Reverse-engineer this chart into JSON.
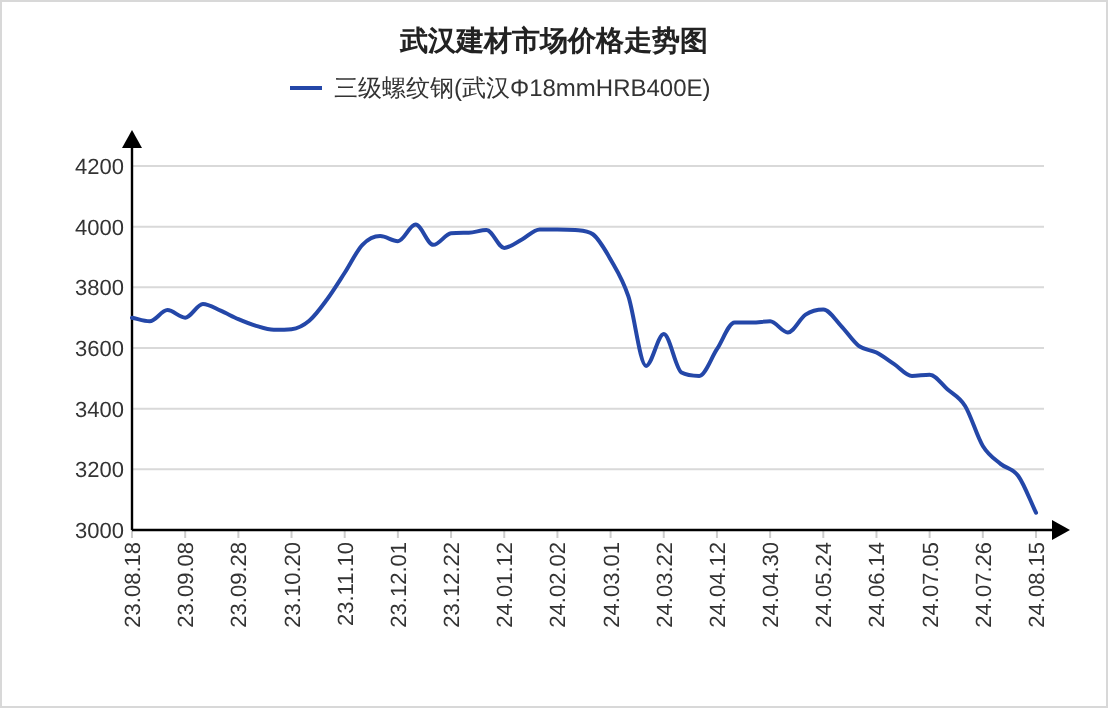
{
  "chart_data": {
    "type": "line",
    "title": "武汉建材市场价格走势图",
    "categories": [
      "23.08.18",
      null,
      null,
      "23.09.08",
      null,
      null,
      "23.09.28",
      null,
      null,
      "23.10.20",
      null,
      null,
      "23.11.10",
      null,
      null,
      "23.12.01",
      null,
      null,
      "23.12.22",
      null,
      null,
      "24.01.12",
      null,
      null,
      "24.02.02",
      null,
      null,
      "24.03.01",
      null,
      null,
      "24.03.22",
      null,
      null,
      "24.04.12",
      null,
      null,
      "24.04.30",
      null,
      null,
      "24.05.24",
      null,
      null,
      "24.06.14",
      null,
      null,
      "24.07.05",
      null,
      null,
      "24.07.26",
      null,
      null,
      "24.08.15"
    ],
    "series": [
      {
        "name": "三级螺纹钢(武汉Φ18mmHRB400E)",
        "color": "#2447a8",
        "values": [
          3700,
          3688,
          3725,
          3700,
          3745,
          3723,
          3695,
          3673,
          3660,
          3662,
          3690,
          3760,
          3848,
          3940,
          3969,
          3952,
          4007,
          3940,
          3978,
          3980,
          3989,
          3930,
          3958,
          3991,
          3991,
          3989,
          3975,
          3892,
          3771,
          3541,
          3646,
          3519,
          3508,
          3596,
          3684,
          3684,
          3688,
          3651,
          3710,
          3727,
          3673,
          3607,
          3585,
          3547,
          3508,
          3512,
          3464,
          3409,
          3277,
          3218,
          3178,
          3057
        ]
      }
    ],
    "ylim": [
      3000,
      4200
    ],
    "yticks": [
      3000,
      3200,
      3400,
      3600,
      3800,
      4000,
      4200
    ],
    "grid": "y",
    "legend": "top"
  }
}
